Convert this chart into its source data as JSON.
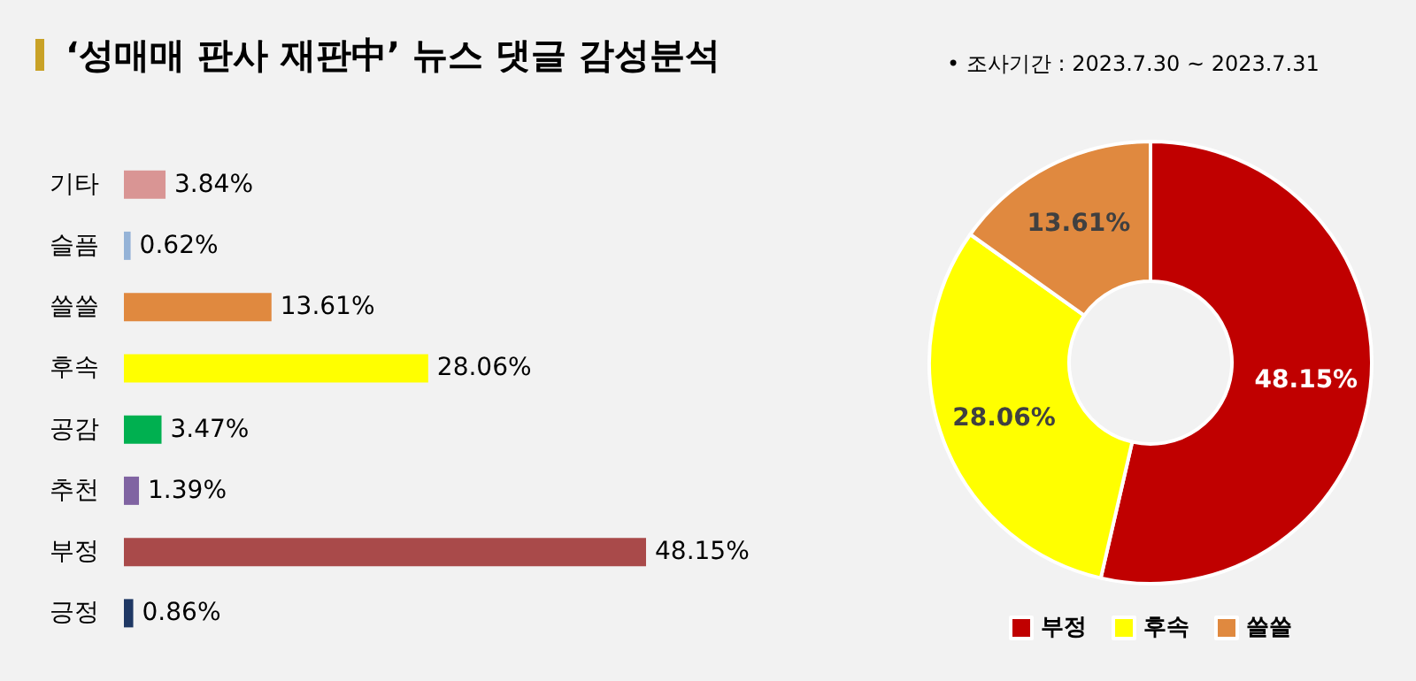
{
  "chart_data": [
    {
      "type": "bar",
      "orientation": "horizontal",
      "title": "‘성매매 판사 재판中’ 뉴스 댓글 감성분석",
      "categories": [
        "기타",
        "슬픔",
        "쓸쓸",
        "후속",
        "공감",
        "추천",
        "부정",
        "긍정"
      ],
      "values": [
        3.84,
        0.62,
        13.61,
        28.06,
        3.47,
        1.39,
        48.15,
        0.86
      ],
      "colors": [
        "#d99594",
        "#95b3d7",
        "#e0893f",
        "#ffff00",
        "#00b050",
        "#8064a2",
        "#a94a4a",
        "#1f3864"
      ],
      "value_labels": [
        "3.84%",
        "0.62%",
        "13.61%",
        "28.06%",
        "3.47%",
        "1.39%",
        "48.15%",
        "0.86%"
      ],
      "legend": false
    },
    {
      "type": "donut",
      "annotations": [
        "• 조사기간 : 2023.7.30 ~ 2023.7.31"
      ],
      "categories": [
        "부정",
        "후속",
        "쓸쓸"
      ],
      "values": [
        48.15,
        28.06,
        13.61
      ],
      "colors": [
        "#c00000",
        "#ffff00",
        "#e0893f"
      ],
      "value_labels": [
        "48.15%",
        "28.06%",
        "13.61%"
      ],
      "legend": "bottom"
    }
  ]
}
